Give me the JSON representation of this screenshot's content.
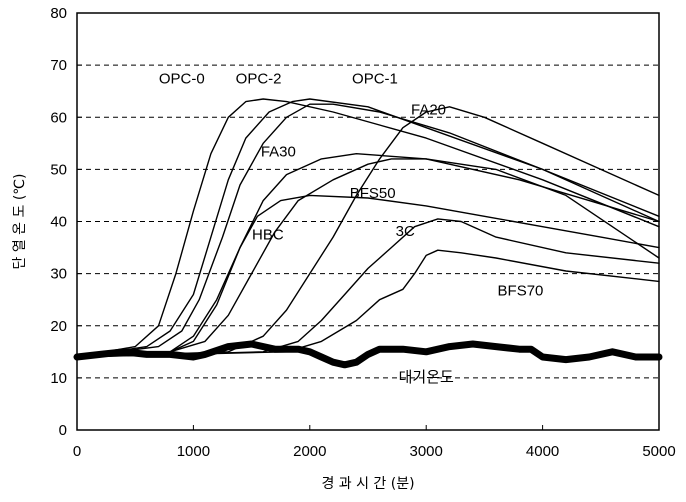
{
  "chart_data": {
    "type": "line",
    "xlabel": "경 과 시 간 (분)",
    "ylabel": "단 열 온 도 (℃)",
    "xlim": [
      0,
      5000
    ],
    "ylim": [
      0,
      80
    ],
    "xticks": [
      "0",
      "1000",
      "2000",
      "3000",
      "4000",
      "5000"
    ],
    "yticks": [
      "0",
      "10",
      "20",
      "30",
      "40",
      "50",
      "60",
      "70",
      "80"
    ],
    "grid": "horizontal dashed",
    "series": [
      {
        "name": "OPC-0",
        "x": [
          0,
          500,
          700,
          850,
          1000,
          1150,
          1300,
          1450,
          1600,
          1800,
          2200,
          3000,
          4000,
          5000
        ],
        "y": [
          14,
          16,
          20,
          30,
          42,
          53,
          60,
          63,
          63.5,
          63,
          61,
          56,
          48,
          39
        ]
      },
      {
        "name": "OPC-2",
        "x": [
          0,
          600,
          800,
          1000,
          1150,
          1300,
          1450,
          1650,
          1850,
          2000,
          2500,
          3000,
          4000,
          5000
        ],
        "y": [
          14,
          16,
          19,
          26,
          37,
          48,
          56,
          61,
          63,
          63.5,
          62,
          58,
          50,
          41
        ]
      },
      {
        "name": "OPC-1",
        "x": [
          0,
          700,
          900,
          1050,
          1250,
          1400,
          1600,
          1800,
          2000,
          2200,
          2600,
          3200,
          4000,
          5000
        ],
        "y": [
          14,
          16,
          19,
          25,
          37,
          47,
          55,
          60,
          62.5,
          62.5,
          61,
          57,
          50,
          40
        ]
      },
      {
        "name": "FA20",
        "x": [
          0,
          800,
          1000,
          1200,
          1400,
          1600,
          1800,
          2100,
          2400,
          3000,
          3800,
          4400,
          5000
        ],
        "y": [
          14,
          15,
          18,
          25,
          35,
          44,
          49,
          52,
          53,
          52,
          48,
          44,
          40
        ]
      },
      {
        "name": "FA30",
        "x": [
          0,
          800,
          1100,
          1300,
          1500,
          1700,
          1900,
          2200,
          2500,
          2700,
          3000,
          3600,
          4200,
          5000
        ],
        "y": [
          14,
          15,
          17,
          22,
          30,
          38,
          44,
          48,
          51,
          52,
          52,
          50,
          45,
          33
        ]
      },
      {
        "name": "HBC",
        "x": [
          0,
          800,
          1000,
          1200,
          1400,
          1550,
          1750,
          2000,
          2500,
          3000,
          3500,
          4000,
          4500,
          5000
        ],
        "y": [
          14,
          15,
          17,
          24,
          35,
          41,
          44,
          45,
          44.5,
          43,
          41,
          39,
          37,
          35
        ]
      },
      {
        "name": "BFS50",
        "x": [
          0,
          1300,
          1600,
          1800,
          2000,
          2200,
          2400,
          2600,
          2800,
          3000,
          3200,
          3500,
          4000,
          4500,
          5000
        ],
        "y": [
          14,
          15,
          18,
          23,
          30,
          37,
          45,
          52,
          58,
          61,
          62,
          60,
          55,
          50,
          45
        ]
      },
      {
        "name": "3C",
        "x": [
          0,
          1600,
          1900,
          2100,
          2300,
          2500,
          2700,
          2900,
          3100,
          3300,
          3600,
          4200,
          5000
        ],
        "y": [
          14,
          15,
          17,
          21,
          26,
          31,
          35,
          39,
          40.5,
          40,
          37,
          34,
          32
        ]
      },
      {
        "name": "BFS70",
        "x": [
          0,
          1800,
          2100,
          2400,
          2600,
          2800,
          2900,
          3000,
          3100,
          3300,
          3600,
          4200,
          5000
        ],
        "y": [
          14,
          15,
          17,
          21,
          25,
          27,
          30,
          33.5,
          34.5,
          34,
          33,
          30.5,
          28.5
        ]
      },
      {
        "name": "대기온도",
        "x": [
          0,
          200,
          400,
          600,
          800,
          1000,
          1100,
          1300,
          1500,
          1700,
          1900,
          2000,
          2100,
          2200,
          2300,
          2400,
          2500,
          2600,
          2800,
          3000,
          3200,
          3400,
          3600,
          3800,
          3900,
          4000,
          4200,
          4400,
          4600,
          4800,
          5000
        ],
        "y": [
          14,
          14.5,
          15,
          14.5,
          14.5,
          14,
          14.5,
          16,
          16.5,
          15.5,
          15.5,
          15,
          14,
          13,
          12.5,
          13,
          14.5,
          15.5,
          15.5,
          15,
          16,
          16.5,
          16,
          15.5,
          15.5,
          14,
          13.5,
          14,
          15,
          14,
          14
        ]
      }
    ]
  }
}
